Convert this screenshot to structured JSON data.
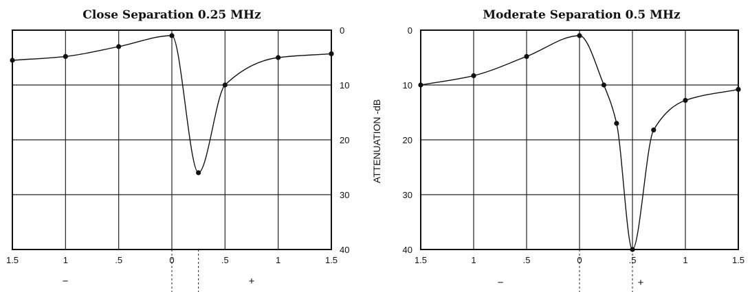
{
  "chart_data": [
    {
      "type": "line",
      "title": "Close Separation 0.25 MHz",
      "x_tick_labels": [
        "1.5",
        "1",
        ".5",
        "0",
        ".5",
        "1",
        "1.5"
      ],
      "y_tick_labels": [
        "0",
        "10",
        "20",
        "30",
        "40"
      ],
      "ylabel": "",
      "y_axis_side": "right",
      "y_inverted": true,
      "xlim": [
        -1.5,
        1.5
      ],
      "ylim": [
        0,
        40
      ],
      "grid": true,
      "sign_labels": {
        "negative": "−",
        "positive": "+"
      },
      "series": [
        {
          "points": [
            {
              "x": -1.5,
              "y": 5.5
            },
            {
              "x": -1.0,
              "y": 4.8
            },
            {
              "x": -0.5,
              "y": 3.0
            },
            {
              "x": 0.0,
              "y": 1.0
            },
            {
              "x": 0.25,
              "y": 26.0
            },
            {
              "x": 0.5,
              "y": 10.0
            },
            {
              "x": 1.0,
              "y": 5.0
            },
            {
              "x": 1.5,
              "y": 4.3
            }
          ]
        }
      ],
      "dashed_markers_x": [
        0,
        0.25
      ]
    },
    {
      "type": "line",
      "title": "Moderate Separation 0.5 MHz",
      "x_tick_labels": [
        "1.5",
        "1",
        ".5",
        "0",
        ".5",
        "1",
        "1.5"
      ],
      "y_tick_labels": [
        "0",
        "10",
        "20",
        "30",
        "40"
      ],
      "ylabel": "ATTENUATION -dB",
      "y_axis_side": "left",
      "y_inverted": true,
      "xlim": [
        -1.5,
        1.5
      ],
      "ylim": [
        0,
        40
      ],
      "grid": true,
      "sign_labels": {
        "negative": "−",
        "positive": "+"
      },
      "series": [
        {
          "points": [
            {
              "x": -1.5,
              "y": 10.0
            },
            {
              "x": -1.0,
              "y": 8.3
            },
            {
              "x": -0.5,
              "y": 4.8
            },
            {
              "x": 0.0,
              "y": 1.0
            },
            {
              "x": 0.23,
              "y": 10.0
            },
            {
              "x": 0.35,
              "y": 17.0
            },
            {
              "x": 0.5,
              "y": 40.0
            },
            {
              "x": 0.7,
              "y": 18.2
            },
            {
              "x": 1.0,
              "y": 12.8
            },
            {
              "x": 1.5,
              "y": 10.8
            }
          ]
        }
      ],
      "dashed_markers_x": [
        0,
        0.5
      ]
    }
  ]
}
